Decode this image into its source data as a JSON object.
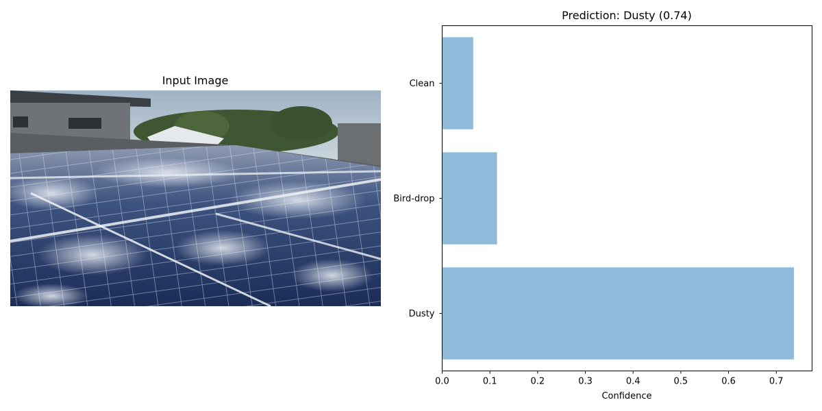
{
  "left_panel": {
    "title": "Input Image"
  },
  "chart_data": {
    "type": "bar",
    "orientation": "horizontal",
    "title": "Prediction: Dusty (0.74)",
    "xlabel": "Confidence",
    "ylabel": "",
    "categories": [
      "Clean",
      "Bird-drop",
      "Dusty"
    ],
    "values": [
      0.065,
      0.115,
      0.737
    ],
    "xlim": [
      0,
      0.775
    ],
    "xticks": [
      0.0,
      0.1,
      0.2,
      0.3,
      0.4,
      0.5,
      0.6,
      0.7
    ],
    "xtick_labels": [
      "0.0",
      "0.1",
      "0.2",
      "0.3",
      "0.4",
      "0.5",
      "0.6",
      "0.7"
    ],
    "bar_color": "#8fbad9",
    "grid": false,
    "legend": "none"
  }
}
